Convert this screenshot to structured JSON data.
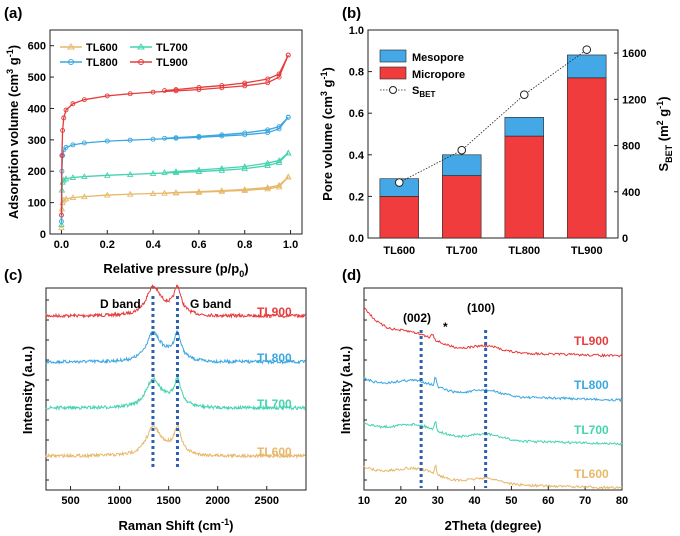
{
  "chart_data": [
    {
      "panel": "(a)",
      "type": "line",
      "xlabel": "Relative pressure (p/p",
      "xlabel_sub": "0",
      "xlabel_end": ")",
      "ylabel": "Adsorption volume (cm",
      "ylabel_sup1": "3",
      "ylabel_mid": " g",
      "ylabel_sup2": "-1",
      "ylabel_end": ")",
      "xlim": [
        -0.05,
        1.05
      ],
      "ylim": [
        0,
        650
      ],
      "xticks": [
        "0.0",
        "0.2",
        "0.4",
        "0.6",
        "0.8",
        "1.0"
      ],
      "yticks": [
        "0",
        "100",
        "200",
        "300",
        "400",
        "500",
        "600"
      ],
      "series": [
        {
          "name": "TL600",
          "color": "#e8b86a",
          "x": [
            0,
            0.002,
            0.005,
            0.01,
            0.02,
            0.05,
            0.1,
            0.2,
            0.3,
            0.4,
            0.5,
            0.6,
            0.7,
            0.8,
            0.9,
            0.95,
            0.99
          ],
          "y": [
            20,
            80,
            100,
            108,
            112,
            116,
            119,
            124,
            127,
            129,
            131,
            133,
            136,
            139,
            144,
            150,
            182
          ],
          "desorption_x": [
            0.99,
            0.95,
            0.9,
            0.8,
            0.7,
            0.6,
            0.5,
            0.45
          ],
          "desorption_y": [
            182,
            155,
            148,
            142,
            138,
            135,
            132,
            130
          ]
        },
        {
          "name": "TL700",
          "color": "#45d3b0",
          "x": [
            0,
            0.002,
            0.005,
            0.01,
            0.02,
            0.05,
            0.1,
            0.2,
            0.3,
            0.4,
            0.5,
            0.6,
            0.7,
            0.8,
            0.9,
            0.95,
            0.99
          ],
          "y": [
            30,
            140,
            165,
            172,
            176,
            180,
            183,
            187,
            190,
            193,
            196,
            199,
            203,
            208,
            218,
            228,
            258
          ],
          "desorption_x": [
            0.99,
            0.95,
            0.9,
            0.8,
            0.7,
            0.6,
            0.5,
            0.45
          ],
          "desorption_y": [
            258,
            234,
            226,
            215,
            209,
            204,
            199,
            196
          ]
        },
        {
          "name": "TL800",
          "color": "#3aa7e0",
          "x": [
            0,
            0.002,
            0.005,
            0.01,
            0.02,
            0.05,
            0.1,
            0.2,
            0.3,
            0.4,
            0.5,
            0.6,
            0.7,
            0.8,
            0.9,
            0.95,
            0.99
          ],
          "y": [
            40,
            200,
            250,
            268,
            276,
            284,
            290,
            296,
            299,
            302,
            305,
            308,
            312,
            316,
            323,
            335,
            372
          ],
          "desorption_x": [
            0.99,
            0.95,
            0.9,
            0.8,
            0.7,
            0.6,
            0.5,
            0.45
          ],
          "desorption_y": [
            372,
            342,
            332,
            322,
            316,
            311,
            307,
            305
          ]
        },
        {
          "name": "TL900",
          "color": "#e63c3c",
          "x": [
            0,
            0.002,
            0.005,
            0.01,
            0.02,
            0.05,
            0.1,
            0.2,
            0.3,
            0.4,
            0.5,
            0.6,
            0.7,
            0.8,
            0.9,
            0.95,
            0.99
          ],
          "y": [
            60,
            250,
            330,
            370,
            395,
            415,
            428,
            440,
            447,
            452,
            456,
            460,
            466,
            472,
            482,
            500,
            570
          ],
          "desorption_x": [
            0.99,
            0.95,
            0.9,
            0.8,
            0.7,
            0.6,
            0.5,
            0.45
          ],
          "desorption_y": [
            570,
            510,
            494,
            481,
            473,
            467,
            460,
            457
          ]
        }
      ]
    },
    {
      "panel": "(b)",
      "type": "bar",
      "categories": [
        "TL600",
        "TL700",
        "TL800",
        "TL900"
      ],
      "series": [
        {
          "name": "Micropore",
          "color": "#f03c3c",
          "values": [
            0.2,
            0.3,
            0.49,
            0.77
          ]
        },
        {
          "name": "Mesopore",
          "color": "#44a8e6",
          "values": [
            0.085,
            0.1,
            0.09,
            0.11
          ]
        }
      ],
      "sbet": {
        "name": "S",
        "sub": "BET",
        "values": [
          480,
          760,
          1240,
          1630
        ]
      },
      "ylabel": "Pore volume (cm",
      "ylabel_sup1": "3",
      "ylabel_mid": " g",
      "ylabel_sup2": "-1",
      "ylabel_end": ")",
      "y2label": "S",
      "y2label_sub": "BET",
      "y2label_end": " (m",
      "y2label_sup1": "2",
      "y2label_mid": " g",
      "y2label_sup2": "-1",
      "y2label_close": ")",
      "ylim": [
        0,
        1.0
      ],
      "y2lim": [
        0,
        1800
      ],
      "yticks": [
        "0.0",
        "0.2",
        "0.4",
        "0.6",
        "0.8",
        "1.0"
      ],
      "y2ticks": [
        "0",
        "400",
        "800",
        "1200",
        "1600"
      ]
    },
    {
      "panel": "(c)",
      "type": "line",
      "xlabel": "Raman Shift (cm",
      "xlabel_sup": "-1",
      "xlabel_end": ")",
      "ylabel": "Intensity (a.u.)",
      "xlim": [
        250,
        2900
      ],
      "xticks": [
        "500",
        "1000",
        "1500",
        "2000",
        "2500"
      ],
      "d_band_label": "D band",
      "g_band_label": "G band",
      "d_band_pos": 1340,
      "g_band_pos": 1590,
      "series": [
        {
          "name": "TL900",
          "color": "#e63c3c",
          "baseline": 3.0
        },
        {
          "name": "TL800",
          "color": "#3aa7e0",
          "baseline": 2.0
        },
        {
          "name": "TL700",
          "color": "#45d3b0",
          "baseline": 1.0
        },
        {
          "name": "TL600",
          "color": "#e8b86a",
          "baseline": 0.0
        }
      ]
    },
    {
      "panel": "(d)",
      "type": "line",
      "xlabel": "2Theta (degree)",
      "ylabel": "Intensity (a.u.)",
      "xlim": [
        10,
        80
      ],
      "xticks": [
        "10",
        "20",
        "30",
        "40",
        "50",
        "60",
        "70",
        "80"
      ],
      "peak_002_label": "(002)",
      "peak_100_label": "(100)",
      "star_label": "*",
      "peak_002_pos": 25.5,
      "peak_100_pos": 43.0,
      "series": [
        {
          "name": "TL900",
          "color": "#e63c3c",
          "baseline": 3.0
        },
        {
          "name": "TL800",
          "color": "#3aa7e0",
          "baseline": 2.0
        },
        {
          "name": "TL700",
          "color": "#45d3b0",
          "baseline": 1.0
        },
        {
          "name": "TL600",
          "color": "#e8b86a",
          "baseline": 0.0
        }
      ]
    }
  ]
}
